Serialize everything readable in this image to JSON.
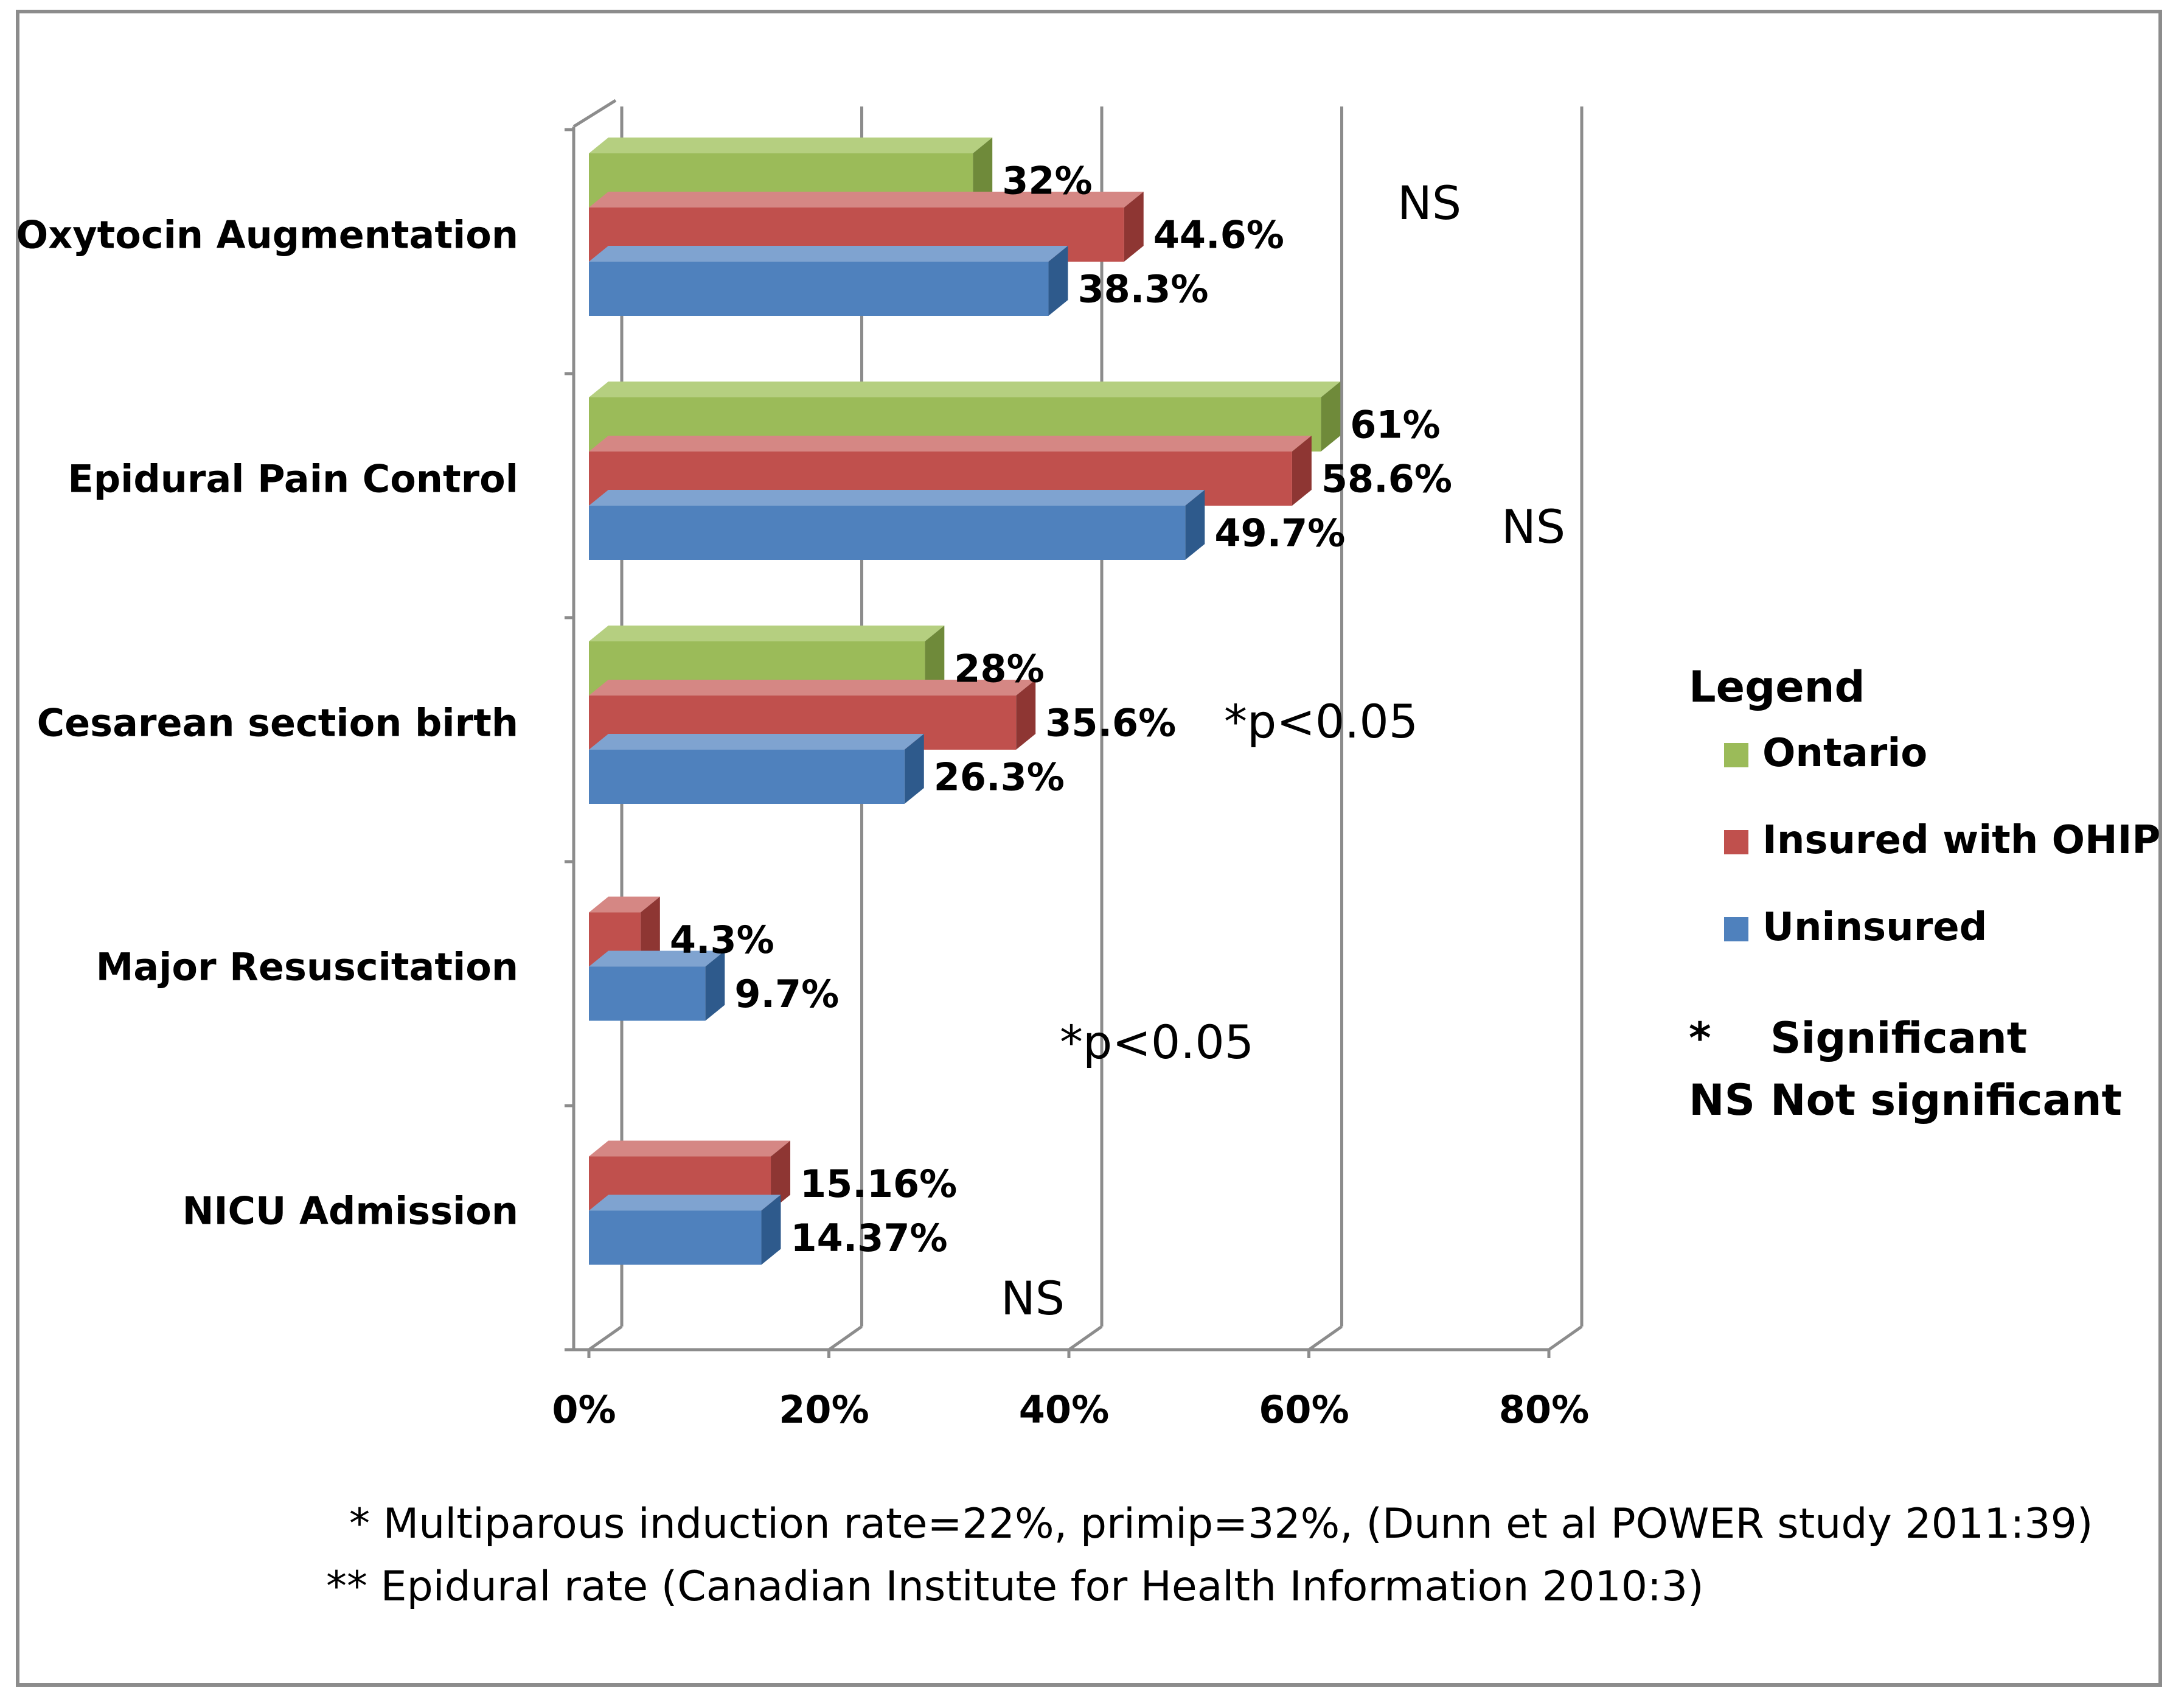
{
  "chart_data": {
    "type": "bar",
    "orientation": "horizontal",
    "style": "3d-clustered",
    "categories": [
      "Oxytocin Augmentation",
      "Epidural Pain Control",
      "Cesarean section birth",
      "Major Resuscitation",
      "NICU Admission"
    ],
    "series": [
      {
        "name": "Ontario",
        "color": "#9bbb59",
        "top_color": "#b5cf80",
        "side_color": "#6f8a3a",
        "values": [
          32,
          61,
          28,
          null,
          null
        ],
        "labels": [
          "32%",
          "61%",
          "28%",
          "",
          ""
        ]
      },
      {
        "name": "Insured with OHIP",
        "color": "#c0504d",
        "top_color": "#d58784",
        "side_color": "#8e3633",
        "values": [
          44.6,
          58.6,
          35.6,
          4.3,
          15.16
        ],
        "labels": [
          "44.6%",
          "58.6%",
          "35.6%",
          "4.3%",
          "15.16%"
        ]
      },
      {
        "name": "Uninsured",
        "color": "#4f81bd",
        "top_color": "#7fa3d0",
        "side_color": "#2e5a8c",
        "values": [
          38.3,
          49.7,
          26.3,
          9.7,
          14.37
        ],
        "labels": [
          "38.3%",
          "49.7%",
          "26.3%",
          "9.7%",
          "14.37%"
        ]
      }
    ],
    "significance": [
      "NS",
      "NS",
      "*p<0.05",
      "*p<0.05",
      "NS"
    ],
    "x_ticks": [
      "0%",
      "20%",
      "40%",
      "60%",
      "80%"
    ],
    "xlim": [
      0,
      80
    ],
    "grid": true,
    "legend": {
      "title": "Legend",
      "position": "right",
      "notes": [
        {
          "symbol": "*",
          "text": "Significant"
        },
        {
          "symbol": "NS",
          "text": "Not significant"
        }
      ]
    },
    "footnotes": [
      "* Multiparous induction rate=22%, primip=32%, (Dunn et al POWER study 2011:39)",
      "** Epidural rate (Canadian Institute for Health Information 2010:3)"
    ]
  }
}
